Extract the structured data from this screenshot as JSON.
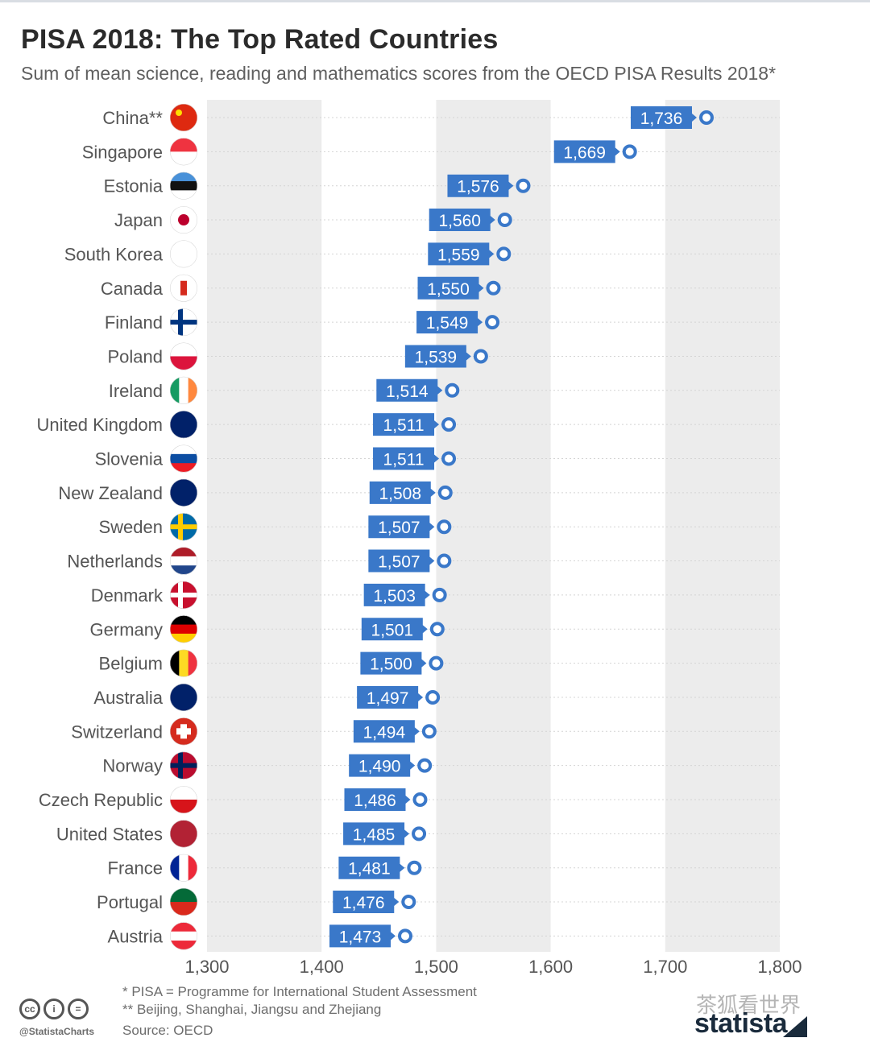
{
  "header": {
    "title": "PISA 2018: The Top Rated Countries",
    "subtitle": "Sum of mean science, reading and mathematics scores from the OECD PISA Results 2018*"
  },
  "chart_data": {
    "type": "bar",
    "title": "PISA 2018: The Top Rated Countries",
    "subtitle": "Sum of mean science, reading and mathematics scores from the OECD PISA Results 2018*",
    "categories": [
      "China**",
      "Singapore",
      "Estonia",
      "Japan",
      "South Korea",
      "Canada",
      "Finland",
      "Poland",
      "Ireland",
      "United Kingdom",
      "Slovenia",
      "New Zealand",
      "Sweden",
      "Netherlands",
      "Denmark",
      "Germany",
      "Belgium",
      "Australia",
      "Switzerland",
      "Norway",
      "Czech Republic",
      "United States",
      "France",
      "Portugal",
      "Austria"
    ],
    "values": [
      1736,
      1669,
      1576,
      1560,
      1559,
      1550,
      1549,
      1539,
      1514,
      1511,
      1511,
      1508,
      1507,
      1507,
      1503,
      1501,
      1500,
      1497,
      1494,
      1490,
      1486,
      1485,
      1481,
      1476,
      1473
    ],
    "value_labels": [
      "1,736",
      "1,669",
      "1,576",
      "1,560",
      "1,559",
      "1,550",
      "1,549",
      "1,539",
      "1,514",
      "1,511",
      "1,511",
      "1,508",
      "1,507",
      "1,507",
      "1,503",
      "1,501",
      "1,500",
      "1,497",
      "1,494",
      "1,490",
      "1,486",
      "1,485",
      "1,481",
      "1,476",
      "1,473"
    ],
    "xlim": [
      1300,
      1800
    ],
    "xticks": [
      1300,
      1400,
      1500,
      1600,
      1700,
      1800
    ],
    "xtick_labels": [
      "1,300",
      "1,400",
      "1,500",
      "1,600",
      "1,700",
      "1,800"
    ],
    "orientation": "horizontal",
    "marker": "dot",
    "grid": true,
    "legend": "none",
    "colors": {
      "label_fill": "#3a78c9",
      "dot": "#3a78c9",
      "band": "#ececec",
      "text": "#555555"
    }
  },
  "footer": {
    "note1": "*  PISA = Programme for International Student Assessment",
    "note2": "** Beijing, Shanghai, Jiangsu and Zhejiang",
    "source": "Source: OECD",
    "handle": "@StatistaCharts",
    "brand": "statista",
    "watermark": "茶狐看世界"
  }
}
